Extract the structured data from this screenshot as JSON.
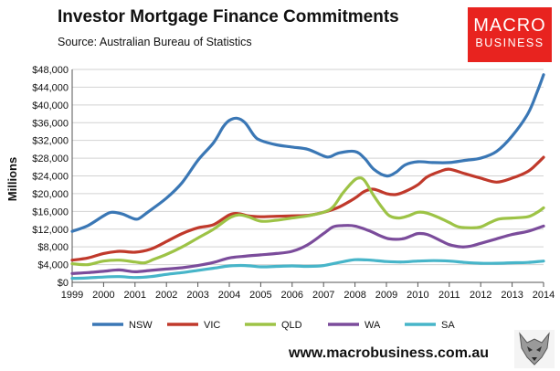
{
  "header": {
    "title": "Investor Mortgage Finance Commitments",
    "subtitle": "Source: Australian Bureau of Statistics"
  },
  "logo": {
    "line1": "MACRO",
    "line2": "BUSINESS",
    "color": "#e8231f"
  },
  "footer": {
    "website": "www.macrobusiness.com.au"
  },
  "chart_data": {
    "type": "line",
    "title": "Investor Mortgage Finance Commitments",
    "ylabel": "Millions",
    "xlabel": "",
    "x_range": [
      1999,
      2014
    ],
    "ylim": [
      0,
      48000
    ],
    "y_ticks": [
      0,
      4000,
      8000,
      12000,
      16000,
      20000,
      24000,
      28000,
      32000,
      36000,
      40000,
      44000,
      48000
    ],
    "y_tick_labels": [
      "$0",
      "$4,000",
      "$8,000",
      "$12,000",
      "$16,000",
      "$20,000",
      "$24,000",
      "$28,000",
      "$32,000",
      "$36,000",
      "$40,000",
      "$44,000",
      "$48,000"
    ],
    "x_ticks": [
      1999,
      2000,
      2001,
      2002,
      2003,
      2004,
      2005,
      2006,
      2007,
      2008,
      2009,
      2010,
      2011,
      2012,
      2013,
      2014
    ],
    "x_tick_labels": [
      "1999",
      "2000",
      "2001",
      "2002",
      "2003",
      "2004",
      "2005",
      "2006",
      "2007",
      "2008",
      "2009",
      "2010",
      "2011",
      "2012",
      "2013",
      "2014"
    ],
    "grid": true,
    "legend": "bottom",
    "series": [
      {
        "name": "NSW",
        "color": "#3a77b5",
        "points": [
          [
            1999,
            11500
          ],
          [
            1999.5,
            12800
          ],
          [
            2000,
            15000
          ],
          [
            2000.25,
            15800
          ],
          [
            2000.6,
            15400
          ],
          [
            2000.9,
            14500
          ],
          [
            2001.1,
            14300
          ],
          [
            2001.4,
            15800
          ],
          [
            2002,
            19000
          ],
          [
            2002.5,
            22500
          ],
          [
            2003,
            27500
          ],
          [
            2003.5,
            31500
          ],
          [
            2003.8,
            35000
          ],
          [
            2004,
            36500
          ],
          [
            2004.25,
            37000
          ],
          [
            2004.5,
            36000
          ],
          [
            2004.8,
            33000
          ],
          [
            2005,
            32000
          ],
          [
            2005.5,
            31000
          ],
          [
            2006,
            30500
          ],
          [
            2006.5,
            30000
          ],
          [
            2007,
            28500
          ],
          [
            2007.2,
            28300
          ],
          [
            2007.5,
            29200
          ],
          [
            2008,
            29500
          ],
          [
            2008.3,
            28000
          ],
          [
            2008.6,
            25500
          ],
          [
            2009,
            24000
          ],
          [
            2009.3,
            24800
          ],
          [
            2009.6,
            26500
          ],
          [
            2010,
            27200
          ],
          [
            2010.5,
            27000
          ],
          [
            2011,
            27000
          ],
          [
            2011.5,
            27500
          ],
          [
            2012,
            28000
          ],
          [
            2012.5,
            29500
          ],
          [
            2013,
            33000
          ],
          [
            2013.5,
            38000
          ],
          [
            2013.8,
            43000
          ],
          [
            2014,
            46800
          ]
        ]
      },
      {
        "name": "VIC",
        "color": "#c0392b",
        "points": [
          [
            1999,
            5000
          ],
          [
            1999.5,
            5500
          ],
          [
            2000,
            6500
          ],
          [
            2000.5,
            7000
          ],
          [
            2001,
            6800
          ],
          [
            2001.5,
            7500
          ],
          [
            2002,
            9200
          ],
          [
            2002.5,
            11000
          ],
          [
            2003,
            12300
          ],
          [
            2003.5,
            13000
          ],
          [
            2004,
            15200
          ],
          [
            2004.3,
            15500
          ],
          [
            2004.6,
            15000
          ],
          [
            2005,
            14800
          ],
          [
            2005.5,
            14900
          ],
          [
            2006,
            15000
          ],
          [
            2006.5,
            15100
          ],
          [
            2007,
            15800
          ],
          [
            2007.5,
            17000
          ],
          [
            2008,
            19000
          ],
          [
            2008.3,
            20500
          ],
          [
            2008.6,
            21000
          ],
          [
            2009,
            20000
          ],
          [
            2009.3,
            19800
          ],
          [
            2009.6,
            20500
          ],
          [
            2010,
            22000
          ],
          [
            2010.3,
            23800
          ],
          [
            2010.7,
            25000
          ],
          [
            2011,
            25500
          ],
          [
            2011.5,
            24500
          ],
          [
            2012,
            23500
          ],
          [
            2012.5,
            22600
          ],
          [
            2013,
            23500
          ],
          [
            2013.5,
            25000
          ],
          [
            2013.8,
            26800
          ],
          [
            2014,
            28200
          ]
        ]
      },
      {
        "name": "QLD",
        "color": "#9dc346",
        "points": [
          [
            1999,
            4200
          ],
          [
            1999.5,
            4000
          ],
          [
            2000,
            4800
          ],
          [
            2000.5,
            5000
          ],
          [
            2001,
            4600
          ],
          [
            2001.3,
            4400
          ],
          [
            2001.6,
            5200
          ],
          [
            2002,
            6300
          ],
          [
            2002.5,
            8000
          ],
          [
            2003,
            10000
          ],
          [
            2003.5,
            12000
          ],
          [
            2004,
            14500
          ],
          [
            2004.3,
            15200
          ],
          [
            2004.6,
            14800
          ],
          [
            2005,
            13800
          ],
          [
            2005.5,
            14000
          ],
          [
            2006,
            14500
          ],
          [
            2006.5,
            15000
          ],
          [
            2007,
            15800
          ],
          [
            2007.3,
            17000
          ],
          [
            2007.6,
            20000
          ],
          [
            2007.9,
            22500
          ],
          [
            2008.1,
            23500
          ],
          [
            2008.3,
            23000
          ],
          [
            2008.6,
            19500
          ],
          [
            2008.9,
            16500
          ],
          [
            2009.1,
            15000
          ],
          [
            2009.4,
            14500
          ],
          [
            2009.7,
            15000
          ],
          [
            2010,
            15800
          ],
          [
            2010.3,
            15600
          ],
          [
            2010.7,
            14500
          ],
          [
            2011,
            13500
          ],
          [
            2011.3,
            12500
          ],
          [
            2011.7,
            12300
          ],
          [
            2012,
            12500
          ],
          [
            2012.3,
            13500
          ],
          [
            2012.6,
            14300
          ],
          [
            2013,
            14500
          ],
          [
            2013.5,
            14800
          ],
          [
            2013.8,
            15800
          ],
          [
            2014,
            16800
          ]
        ]
      },
      {
        "name": "WA",
        "color": "#7b4c9b",
        "points": [
          [
            1999,
            2000
          ],
          [
            1999.5,
            2200
          ],
          [
            2000,
            2500
          ],
          [
            2000.5,
            2800
          ],
          [
            2001,
            2400
          ],
          [
            2001.5,
            2700
          ],
          [
            2002,
            3000
          ],
          [
            2002.5,
            3300
          ],
          [
            2003,
            3800
          ],
          [
            2003.5,
            4500
          ],
          [
            2004,
            5500
          ],
          [
            2004.5,
            5900
          ],
          [
            2005,
            6200
          ],
          [
            2005.5,
            6500
          ],
          [
            2006,
            7000
          ],
          [
            2006.5,
            8500
          ],
          [
            2007,
            11000
          ],
          [
            2007.3,
            12500
          ],
          [
            2007.6,
            12800
          ],
          [
            2008,
            12700
          ],
          [
            2008.5,
            11500
          ],
          [
            2008.8,
            10500
          ],
          [
            2009.1,
            9800
          ],
          [
            2009.5,
            9800
          ],
          [
            2009.8,
            10500
          ],
          [
            2010,
            11000
          ],
          [
            2010.3,
            10800
          ],
          [
            2010.7,
            9500
          ],
          [
            2011,
            8500
          ],
          [
            2011.4,
            8000
          ],
          [
            2011.7,
            8200
          ],
          [
            2012,
            8800
          ],
          [
            2012.5,
            9800
          ],
          [
            2013,
            10800
          ],
          [
            2013.5,
            11500
          ],
          [
            2014,
            12700
          ]
        ]
      },
      {
        "name": "SA",
        "color": "#47b5c9",
        "points": [
          [
            1999,
            900
          ],
          [
            1999.5,
            1000
          ],
          [
            2000,
            1200
          ],
          [
            2000.5,
            1300
          ],
          [
            2001,
            1100
          ],
          [
            2001.5,
            1300
          ],
          [
            2002,
            1800
          ],
          [
            2002.5,
            2200
          ],
          [
            2003,
            2700
          ],
          [
            2003.5,
            3200
          ],
          [
            2004,
            3700
          ],
          [
            2004.5,
            3800
          ],
          [
            2005,
            3500
          ],
          [
            2005.5,
            3600
          ],
          [
            2006,
            3700
          ],
          [
            2006.5,
            3600
          ],
          [
            2007,
            3800
          ],
          [
            2007.5,
            4500
          ],
          [
            2008,
            5100
          ],
          [
            2008.5,
            5000
          ],
          [
            2009,
            4700
          ],
          [
            2009.5,
            4600
          ],
          [
            2010,
            4800
          ],
          [
            2010.5,
            4900
          ],
          [
            2011,
            4800
          ],
          [
            2011.5,
            4500
          ],
          [
            2012,
            4300
          ],
          [
            2012.5,
            4300
          ],
          [
            2013,
            4400
          ],
          [
            2013.5,
            4500
          ],
          [
            2014,
            4800
          ]
        ]
      }
    ]
  }
}
